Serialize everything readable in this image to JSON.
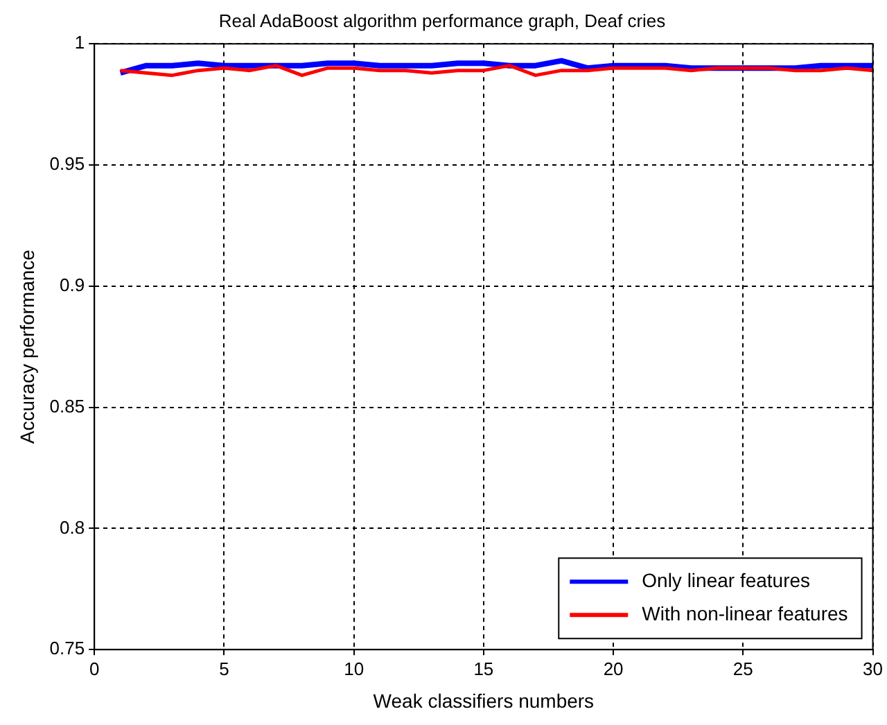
{
  "chart_data": {
    "type": "line",
    "title": "Real AdaBoost algorithm performance graph, Deaf cries",
    "xlabel": "Weak classifiers numbers",
    "ylabel": "Accuracy performance",
    "x": [
      1,
      2,
      3,
      4,
      5,
      6,
      7,
      8,
      9,
      10,
      11,
      12,
      13,
      14,
      15,
      16,
      17,
      18,
      19,
      20,
      21,
      22,
      23,
      24,
      25,
      26,
      27,
      28,
      29,
      30
    ],
    "series": [
      {
        "name": "Only linear features",
        "color": "#0000ff",
        "values": [
          0.988,
          0.991,
          0.991,
          0.992,
          0.991,
          0.991,
          0.991,
          0.991,
          0.992,
          0.992,
          0.991,
          0.991,
          0.991,
          0.992,
          0.992,
          0.991,
          0.991,
          0.993,
          0.99,
          0.991,
          0.991,
          0.991,
          0.99,
          0.99,
          0.99,
          0.99,
          0.99,
          0.991,
          0.991,
          0.991
        ]
      },
      {
        "name": "With non-linear features",
        "color": "#ff0000",
        "values": [
          0.989,
          0.988,
          0.987,
          0.989,
          0.99,
          0.989,
          0.991,
          0.987,
          0.99,
          0.99,
          0.989,
          0.989,
          0.988,
          0.989,
          0.989,
          0.991,
          0.987,
          0.989,
          0.989,
          0.99,
          0.99,
          0.99,
          0.989,
          0.99,
          0.99,
          0.99,
          0.989,
          0.989,
          0.99,
          0.989
        ]
      }
    ],
    "xlim": [
      0,
      30
    ],
    "xticks": [
      0,
      5,
      10,
      15,
      20,
      25,
      30
    ],
    "ylim": [
      0.75,
      1
    ],
    "yticks": [
      0.75,
      0.8,
      0.85,
      0.9,
      0.95,
      1
    ],
    "grid": true,
    "legend": "bottom right",
    "marker": "none",
    "line_style": "solid"
  }
}
